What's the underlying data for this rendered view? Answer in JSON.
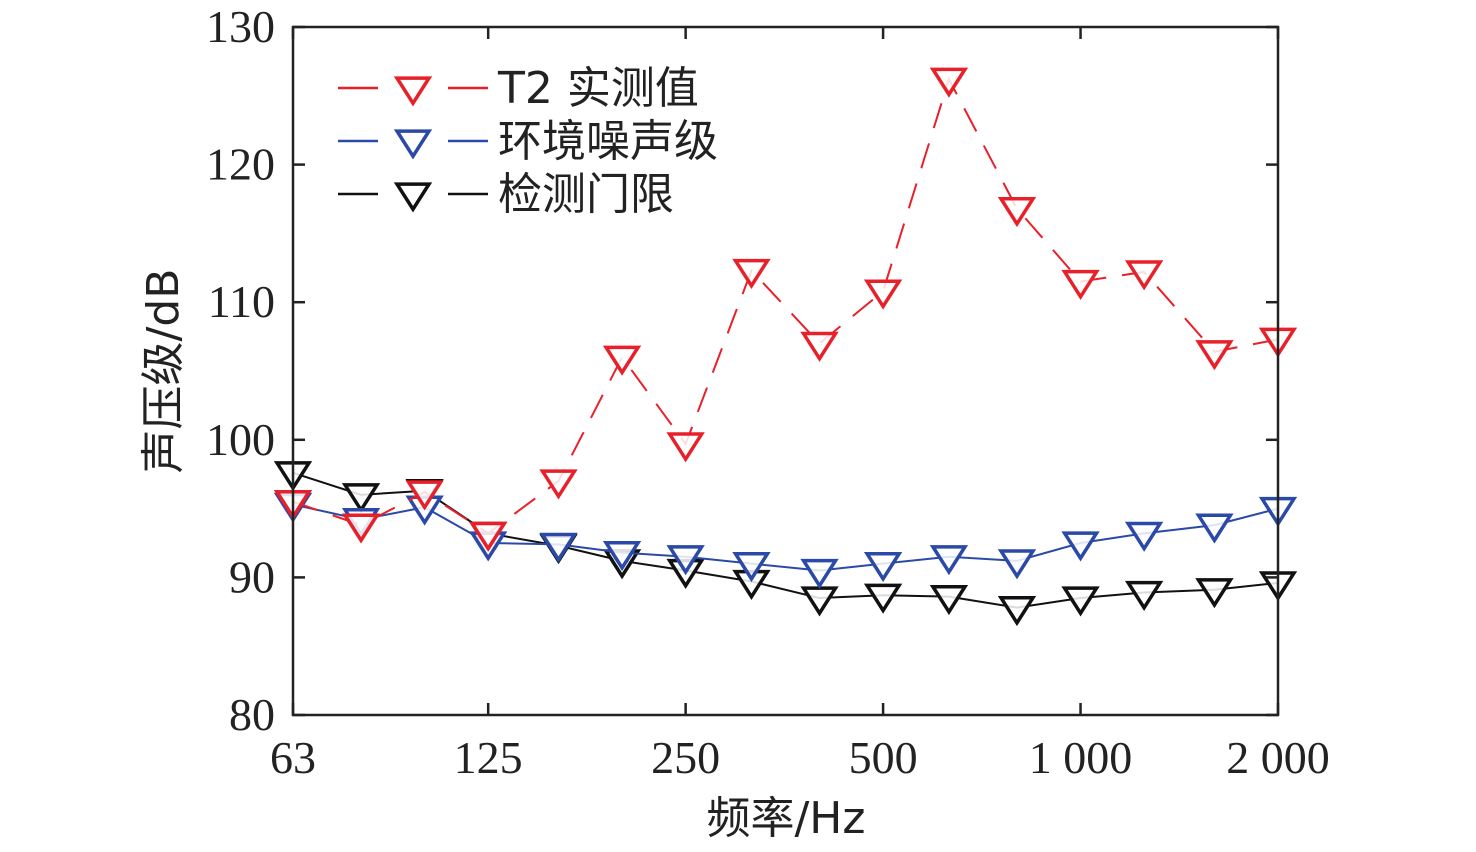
{
  "chart_data": {
    "type": "line",
    "x": [
      63,
      80,
      100,
      125,
      160,
      200,
      250,
      315,
      400,
      500,
      630,
      800,
      1000,
      1250,
      1600,
      2000
    ],
    "x_scale": "log",
    "xticks": [
      63,
      125,
      250,
      500,
      1000,
      2000
    ],
    "xtick_labels": [
      "63",
      "125",
      "250",
      "500",
      "1 000",
      "2 000"
    ],
    "xlabel": "频率/Hz",
    "ylabel": "声压级/dB",
    "ylim": [
      80,
      130
    ],
    "yticks": [
      80,
      90,
      100,
      110,
      120,
      130
    ],
    "ytick_labels": [
      "80",
      "90",
      "100",
      "110",
      "120",
      "130"
    ],
    "grid": false,
    "legend_position": "top-left",
    "series": [
      {
        "name": "T2 实测值",
        "color": "#e8202a",
        "marker": "triangle-down",
        "line_style": "dashed",
        "values": [
          95.5,
          93.8,
          96.2,
          93.2,
          97.0,
          106.0,
          99.7,
          112.3,
          107.0,
          110.8,
          126.2,
          116.8,
          111.5,
          112.2,
          106.4,
          107.3
        ]
      },
      {
        "name": "环境噪声级",
        "color": "#2b4aa8",
        "marker": "triangle-down",
        "line_style": "dashed",
        "values": [
          95.3,
          94.2,
          95.1,
          92.5,
          92.4,
          91.8,
          91.5,
          91.0,
          90.5,
          91.0,
          91.5,
          91.2,
          92.5,
          93.2,
          93.8,
          95.0
        ]
      },
      {
        "name": "检测门限",
        "color": "#111111",
        "marker": "triangle-down",
        "line_style": "dashed",
        "values": [
          97.6,
          96.0,
          96.3,
          93.2,
          92.3,
          91.2,
          90.5,
          89.7,
          88.5,
          88.7,
          88.6,
          87.8,
          88.5,
          88.9,
          89.1,
          89.6
        ]
      }
    ]
  }
}
